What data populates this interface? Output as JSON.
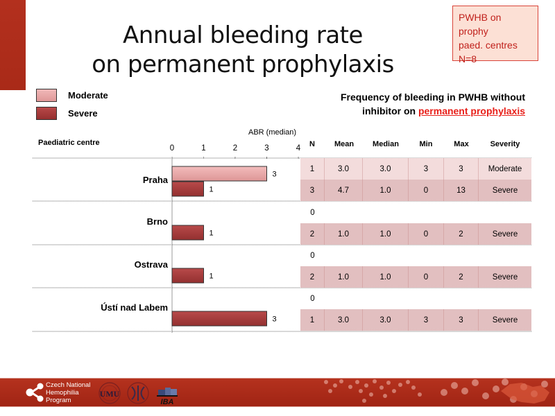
{
  "title_line1": "Annual bleeding rate",
  "title_line2": "on permanent prophylaxis",
  "note": {
    "line1": "PWHB on prophy",
    "line2": "paed. centres",
    "line3": "N=8"
  },
  "legend": [
    {
      "label": "Moderate",
      "color": "#e6a0a0"
    },
    {
      "label": "Severe",
      "color": "#a33a3a"
    }
  ],
  "freq_title": {
    "line1": "Frequency of bleeding in PWHB without",
    "line2_prefix": "inhibitor on ",
    "line2_link": "permanent prophylaxis"
  },
  "chart_data": {
    "type": "bar",
    "orientation": "horizontal",
    "title": "",
    "xlabel": "ABR (median)",
    "ylabel": "Paediatric centre",
    "xlim": [
      0,
      4
    ],
    "xticks": [
      "0",
      "1",
      "2",
      "3",
      "4"
    ],
    "categories": [
      "Praha",
      "Brno",
      "Ostrava",
      "Ústí nad Labem"
    ],
    "series": [
      {
        "name": "Moderate",
        "color": "#e6a0a0",
        "values": [
          3,
          null,
          null,
          null
        ]
      },
      {
        "name": "Severe",
        "color": "#a33a3a",
        "values": [
          1,
          1,
          1,
          3
        ]
      }
    ]
  },
  "table": {
    "headers": [
      "N",
      "Mean",
      "Median",
      "Min",
      "Max",
      "Severity"
    ],
    "groups": [
      {
        "rows": [
          {
            "n": "1",
            "mean": "3.0",
            "median": "3.0",
            "min": "3",
            "max": "3",
            "severity": "Moderate"
          },
          {
            "n": "3",
            "mean": "4.7",
            "median": "1.0",
            "min": "0",
            "max": "13",
            "severity": "Severe"
          }
        ]
      },
      {
        "zero": "0",
        "rows": [
          {
            "n": "2",
            "mean": "1.0",
            "median": "1.0",
            "min": "0",
            "max": "2",
            "severity": "Severe"
          }
        ]
      },
      {
        "zero": "0",
        "rows": [
          {
            "n": "2",
            "mean": "1.0",
            "median": "1.0",
            "min": "0",
            "max": "2",
            "severity": "Severe"
          }
        ]
      },
      {
        "zero": "0",
        "rows": [
          {
            "n": "1",
            "mean": "3.0",
            "median": "3.0",
            "min": "3",
            "max": "3",
            "severity": "Severe"
          }
        ]
      }
    ]
  },
  "footer": {
    "program_line1": "Czech National",
    "program_line2": "Hemophilia",
    "program_line3": "Program",
    "logo_iba": "IBA",
    "logo_umu": "UMU"
  }
}
